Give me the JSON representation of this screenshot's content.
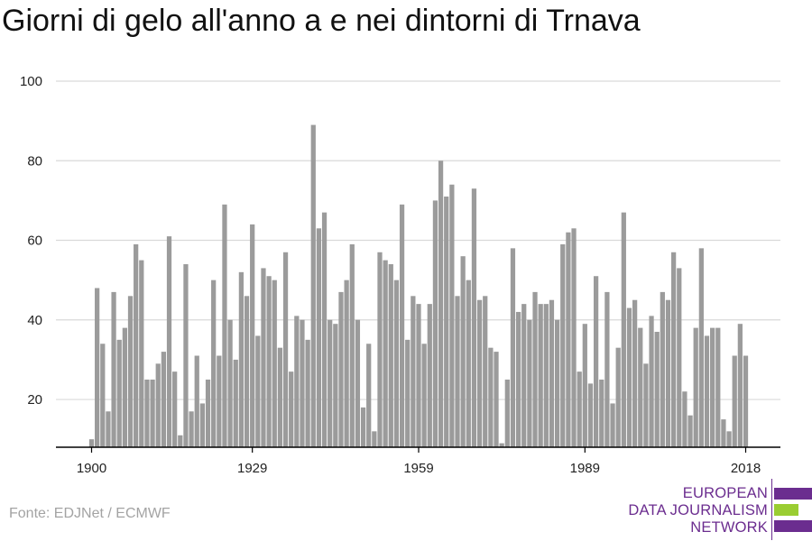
{
  "title": "Giorni di gelo all'anno a e nei dintorni di Trnava",
  "source": "Fonte: EDJNet / ECMWF",
  "logo": {
    "line1": "EUROPEAN",
    "line2": "DATA JOURNALISM",
    "line3": "NETWORK",
    "colors": {
      "purple": "#6b2d8f",
      "green": "#9acd32"
    }
  },
  "colors": {
    "bar": "#9b9b9b",
    "grid": "#d9d9d9",
    "axis": "#000000",
    "text": "#222222"
  },
  "chart_data": {
    "type": "bar",
    "title": "Giorni di gelo all'anno a e nei dintorni di Trnava",
    "xlabel": "",
    "ylabel": "",
    "x_ticks": [
      1900,
      1929,
      1959,
      1989,
      2018
    ],
    "y_ticks": [
      20,
      40,
      60,
      80,
      100
    ],
    "ylim": [
      8,
      100
    ],
    "grid": true,
    "legend": "none",
    "x": [
      1900,
      1901,
      1902,
      1903,
      1904,
      1905,
      1906,
      1907,
      1908,
      1909,
      1910,
      1911,
      1912,
      1913,
      1914,
      1915,
      1916,
      1917,
      1918,
      1919,
      1920,
      1921,
      1922,
      1923,
      1924,
      1925,
      1926,
      1927,
      1928,
      1929,
      1930,
      1931,
      1932,
      1933,
      1934,
      1935,
      1936,
      1937,
      1938,
      1939,
      1940,
      1941,
      1942,
      1943,
      1944,
      1945,
      1946,
      1947,
      1948,
      1949,
      1950,
      1951,
      1952,
      1953,
      1954,
      1955,
      1956,
      1957,
      1958,
      1959,
      1960,
      1961,
      1962,
      1963,
      1964,
      1965,
      1966,
      1967,
      1968,
      1969,
      1970,
      1971,
      1972,
      1973,
      1974,
      1975,
      1976,
      1977,
      1978,
      1979,
      1980,
      1981,
      1982,
      1983,
      1984,
      1985,
      1986,
      1987,
      1988,
      1989,
      1990,
      1991,
      1992,
      1993,
      1994,
      1995,
      1996,
      1997,
      1998,
      1999,
      2000,
      2001,
      2002,
      2003,
      2004,
      2005,
      2006,
      2007,
      2008,
      2009,
      2010,
      2011,
      2012,
      2013,
      2014,
      2015,
      2016,
      2017,
      2018
    ],
    "values": [
      10,
      48,
      34,
      17,
      47,
      35,
      38,
      46,
      59,
      55,
      25,
      25,
      29,
      32,
      61,
      27,
      11,
      54,
      17,
      31,
      19,
      25,
      50,
      31,
      69,
      40,
      30,
      52,
      46,
      64,
      36,
      53,
      51,
      50,
      33,
      57,
      27,
      41,
      40,
      35,
      89,
      63,
      67,
      40,
      39,
      47,
      50,
      59,
      40,
      18,
      34,
      12,
      57,
      55,
      54,
      50,
      69,
      35,
      46,
      44,
      34,
      44,
      70,
      80,
      71,
      74,
      46,
      56,
      50,
      73,
      45,
      46,
      33,
      32,
      9,
      25,
      58,
      42,
      44,
      40,
      47,
      44,
      44,
      45,
      40,
      59,
      62,
      63,
      27,
      39,
      24,
      51,
      25,
      47,
      19,
      33,
      67,
      43,
      45,
      38,
      29,
      41,
      37,
      47,
      45,
      57,
      53,
      22,
      16,
      38,
      58,
      36,
      38,
      38,
      15,
      12,
      31,
      39,
      31
    ]
  }
}
